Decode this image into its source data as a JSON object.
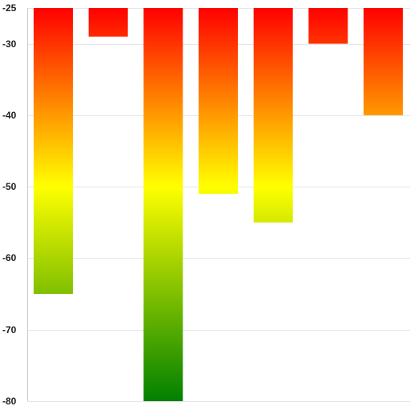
{
  "chart_data": {
    "type": "bar",
    "categories": [
      "",
      "",
      "",
      "",
      "",
      "",
      ""
    ],
    "values": [
      -65,
      -29,
      -80,
      -51,
      -55,
      -30,
      -40
    ],
    "baseline": -25,
    "ylim": [
      -80,
      -25
    ],
    "yticks": [
      -25,
      -30,
      -40,
      -50,
      -60,
      -70,
      -80
    ],
    "title": "",
    "xlabel": "",
    "ylabel": "",
    "grid": true,
    "colors": {
      "gradient_top": "#ff0000",
      "gradient_mid": "#ffff00",
      "gradient_bottom": "#008000",
      "gridline": "#e6e6e6",
      "axis": "#cccccc"
    }
  }
}
